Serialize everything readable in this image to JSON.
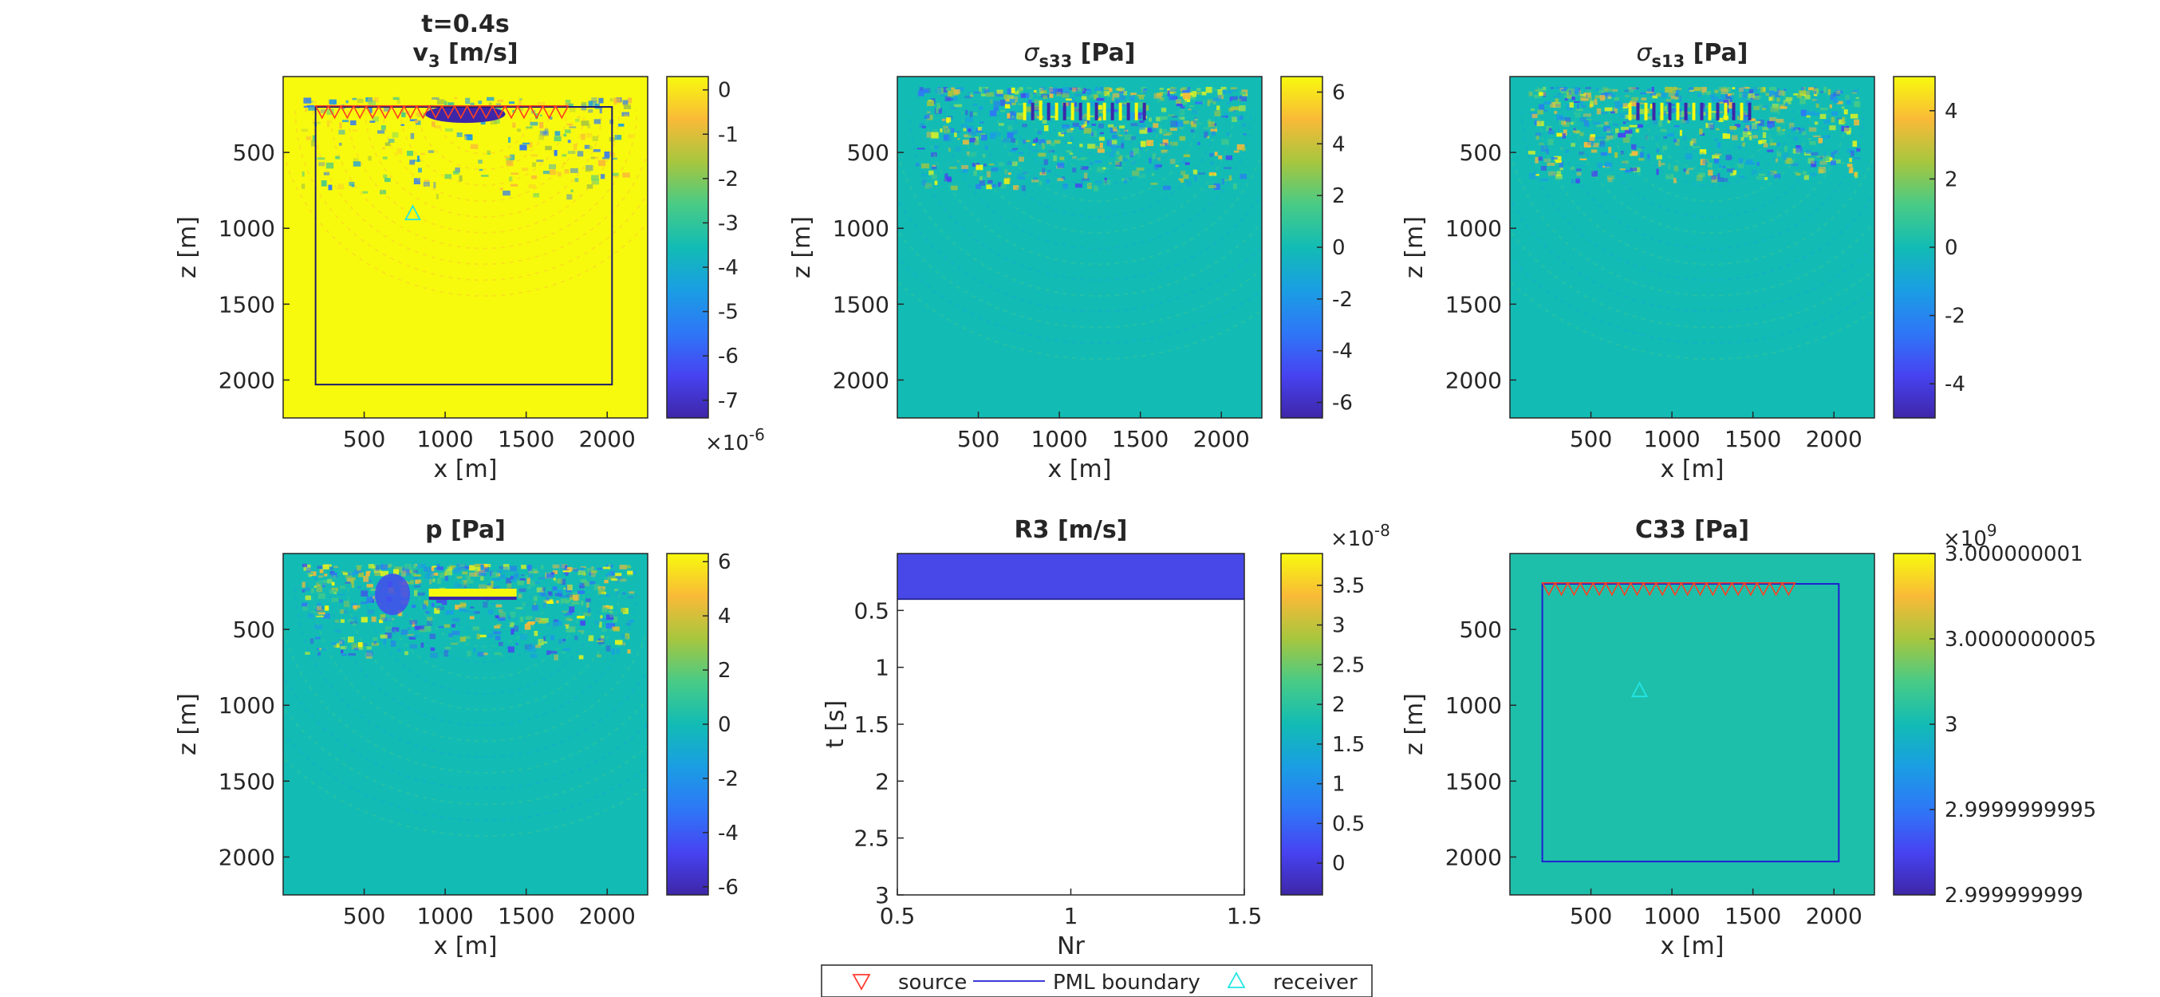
{
  "figure": {
    "colormap": "parula",
    "legend": {
      "placement": "bottom-center",
      "items": [
        {
          "label": "source",
          "marker": "triangle-down",
          "color": "#ff3b30"
        },
        {
          "label": "PML boundary",
          "marker": "line",
          "color": "#3b3bd9"
        },
        {
          "label": "receiver",
          "marker": "triangle-up",
          "color": "#22e5e5"
        }
      ]
    }
  },
  "chart_data": [
    {
      "type": "heatmap",
      "title": "t=0.4s",
      "title2": "v",
      "title2_sub": "3",
      "title2_rest": " [m/s]",
      "xlabel": "x [m]",
      "ylabel": "z [m]",
      "xlim": [
        0,
        2250
      ],
      "ylim": [
        2250,
        0
      ],
      "xticks": [
        500,
        1000,
        1500,
        2000
      ],
      "yticks": [
        500,
        1000,
        1500,
        2000
      ],
      "background": "#f8fa0d",
      "colorbar": {
        "ticks": [
          "0",
          "-1",
          "-2",
          "-3",
          "-4",
          "-5",
          "-6",
          "-7"
        ],
        "values": [
          0,
          -1,
          -2,
          -3,
          -4,
          -5,
          -6,
          -7
        ],
        "range": [
          -7.4,
          0.3
        ],
        "exponent_base": "×10",
        "exponent_power": "-6"
      },
      "pml_box": {
        "x": [
          200,
          2030
        ],
        "z": [
          200,
          2030
        ],
        "color": "#1a1a6e"
      },
      "sources": {
        "x_start": 240,
        "x_end": 1720,
        "count": 20,
        "z": 230,
        "color": "#ff4020"
      },
      "receiver": {
        "x": 800,
        "z": 900,
        "color": "#22e5e5"
      },
      "wavefield": {
        "style": "v3"
      }
    },
    {
      "type": "heatmap",
      "title": "σ",
      "title_sub": "s33",
      "title_rest": " [Pa]",
      "xlabel": "x [m]",
      "ylabel": "z [m]",
      "xlim": [
        0,
        2250
      ],
      "ylim": [
        2250,
        0
      ],
      "xticks": [
        500,
        1000,
        1500,
        2000
      ],
      "yticks": [
        500,
        1000,
        1500,
        2000
      ],
      "background": "#12bcb4",
      "colorbar": {
        "ticks": [
          "6",
          "4",
          "2",
          "0",
          "-2",
          "-4",
          "-6"
        ],
        "values": [
          6,
          4,
          2,
          0,
          -2,
          -4,
          -6
        ],
        "range": [
          -6.6,
          6.6
        ]
      },
      "wavefield": {
        "style": "s33"
      }
    },
    {
      "type": "heatmap",
      "title": "σ",
      "title_sub": "s13",
      "title_rest": " [Pa]",
      "xlabel": "x [m]",
      "ylabel": "z [m]",
      "xlim": [
        0,
        2250
      ],
      "ylim": [
        2250,
        0
      ],
      "xticks": [
        500,
        1000,
        1500,
        2000
      ],
      "yticks": [
        500,
        1000,
        1500,
        2000
      ],
      "background": "#12bcb4",
      "colorbar": {
        "ticks": [
          "4",
          "2",
          "0",
          "-2",
          "-4"
        ],
        "values": [
          4,
          2,
          0,
          -2,
          -4
        ],
        "range": [
          -5,
          5
        ]
      },
      "wavefield": {
        "style": "s13"
      }
    },
    {
      "type": "heatmap",
      "title": "p [Pa]",
      "xlabel": "x [m]",
      "ylabel": "z [m]",
      "xlim": [
        0,
        2250
      ],
      "ylim": [
        2250,
        0
      ],
      "xticks": [
        500,
        1000,
        1500,
        2000
      ],
      "yticks": [
        500,
        1000,
        1500,
        2000
      ],
      "background": "#12bcb4",
      "colorbar": {
        "ticks": [
          "6",
          "4",
          "2",
          "0",
          "-2",
          "-4",
          "-6"
        ],
        "values": [
          6,
          4,
          2,
          0,
          -2,
          -4,
          -6
        ],
        "range": [
          -6.3,
          6.3
        ]
      },
      "wavefield": {
        "style": "p"
      }
    },
    {
      "type": "heatmap",
      "title": "R3 [m/s]",
      "xlabel": "Nr",
      "ylabel": "t [s]",
      "xlim": [
        0.5,
        1.5
      ],
      "ylim": [
        3,
        0
      ],
      "xticks": [
        "0.5",
        "1",
        "1.5"
      ],
      "xtick_values": [
        0.5,
        1,
        1.5
      ],
      "yticks": [
        "0.5",
        "1",
        "1.5",
        "2",
        "2.5",
        "3"
      ],
      "ytick_values": [
        0.5,
        1,
        1.5,
        2,
        2.5,
        3
      ],
      "filled_until_t": 0.4,
      "fill_color": "#4848e8",
      "colorbar": {
        "ticks": [
          "3.5",
          "3",
          "2.5",
          "2",
          "1.5",
          "1",
          "0.5",
          "0"
        ],
        "values": [
          3.5,
          3,
          2.5,
          2,
          1.5,
          1,
          0.5,
          0
        ],
        "range": [
          -0.4,
          3.9
        ],
        "exponent_base": "×10",
        "exponent_power": "-8"
      }
    },
    {
      "type": "heatmap",
      "title": "C33 [Pa]",
      "xlabel": "x [m]",
      "ylabel": "z [m]",
      "xlim": [
        0,
        2250
      ],
      "ylim": [
        2250,
        0
      ],
      "xticks": [
        500,
        1000,
        1500,
        2000
      ],
      "yticks": [
        500,
        1000,
        1500,
        2000
      ],
      "background": "#1ebfaa",
      "colorbar": {
        "ticks": [
          "3.000000001",
          "3.0000000005",
          "3",
          "2.9999999995",
          "2.999999999"
        ],
        "values": [
          1,
          0.5,
          0,
          -0.5,
          -1
        ],
        "range": [
          -1,
          1
        ],
        "exponent_base": "×10",
        "exponent_power": "9"
      },
      "pml_box": {
        "x": [
          200,
          2030
        ],
        "z": [
          200,
          2030
        ],
        "color": "#1f1fd0"
      },
      "sources": {
        "x_start": 240,
        "x_end": 1720,
        "count": 20,
        "z": 230,
        "color": "#ff4020"
      },
      "receiver": {
        "x": 800,
        "z": 900,
        "color": "#22e5e5"
      }
    }
  ]
}
